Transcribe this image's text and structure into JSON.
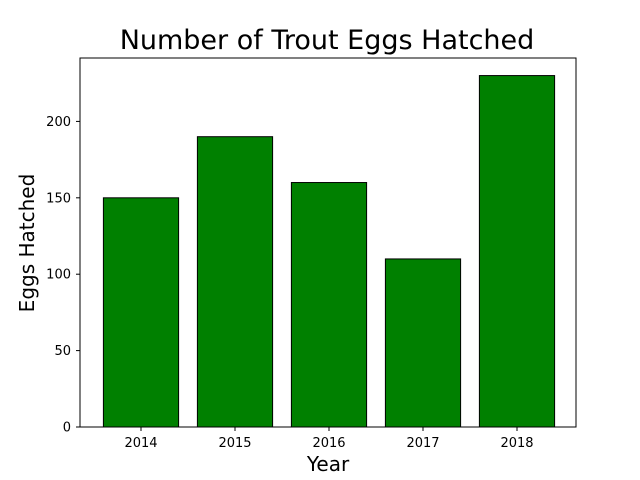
{
  "chart_data": {
    "type": "bar",
    "title": "Number of Trout Eggs Hatched",
    "xlabel": "Year",
    "ylabel": "Eggs Hatched",
    "categories": [
      "2014",
      "2015",
      "2016",
      "2017",
      "2018"
    ],
    "values": [
      150,
      190,
      160,
      110,
      230
    ],
    "ylim": [
      0,
      241.5
    ],
    "yticks": [
      0,
      50,
      100,
      150,
      200
    ],
    "grid": false,
    "legend": "none",
    "bar_color": "#008000",
    "bar_edge_color": "#000000"
  }
}
